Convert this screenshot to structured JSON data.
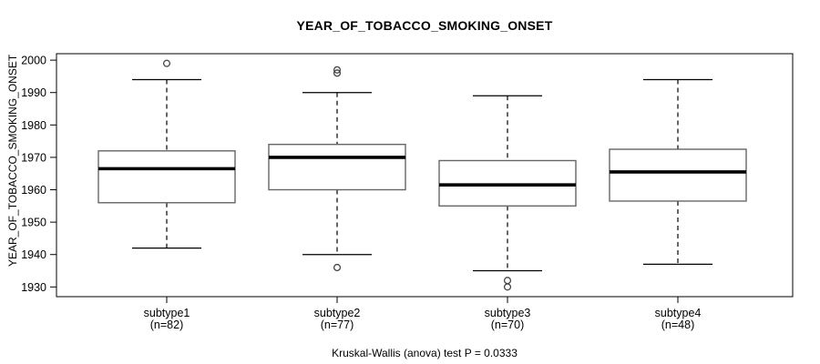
{
  "chart_data": {
    "type": "boxplot",
    "title": "YEAR_OF_TOBACCO_SMOKING_ONSET",
    "ylabel": "YEAR_OF_TOBACCO_SMOKING_ONSET",
    "xlabel": "",
    "annotation": "Kruskal-Wallis (anova) test P = 0.0333",
    "ylim": [
      1927,
      2002
    ],
    "yticks": [
      1930,
      1940,
      1950,
      1960,
      1970,
      1980,
      1990,
      2000
    ],
    "grid": false,
    "legend": "none",
    "series": [
      {
        "label": "subtype1",
        "sublabel": "(n=82)",
        "n": 82,
        "whisker_low": 1942,
        "q1": 1956,
        "median": 1966.5,
        "q3": 1972,
        "whisker_high": 1994,
        "outliers": [
          1999
        ]
      },
      {
        "label": "subtype2",
        "sublabel": "(n=77)",
        "n": 77,
        "whisker_low": 1940,
        "q1": 1960,
        "median": 1970,
        "q3": 1974,
        "whisker_high": 1990,
        "outliers": [
          1997,
          1996,
          1936
        ]
      },
      {
        "label": "subtype3",
        "sublabel": "(n=70)",
        "n": 70,
        "whisker_low": 1935,
        "q1": 1955,
        "median": 1961.5,
        "q3": 1969,
        "whisker_high": 1989,
        "outliers": [
          1932,
          1930
        ]
      },
      {
        "label": "subtype4",
        "sublabel": "(n=48)",
        "n": 48,
        "whisker_low": 1937,
        "q1": 1956.5,
        "median": 1965.5,
        "q3": 1972.5,
        "whisker_high": 1994,
        "outliers": []
      }
    ],
    "colors": {
      "box_border": "#666666",
      "box_fill": "#ffffff",
      "median": "#000000",
      "whisker": "#000000",
      "outlier": "#444444",
      "axis": "#000000",
      "text": "#000000"
    }
  }
}
